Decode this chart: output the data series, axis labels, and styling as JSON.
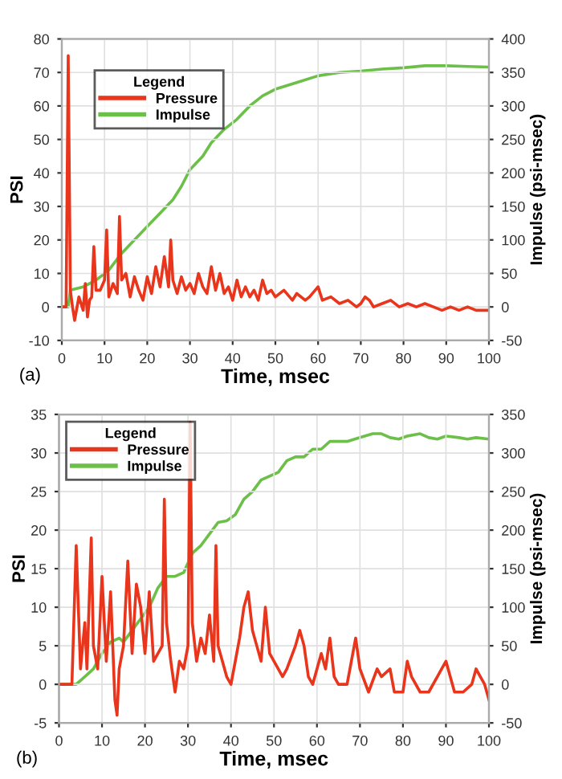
{
  "chart_data": [
    {
      "type": "line",
      "xlabel": "Time, msec",
      "ylabel": "PSI",
      "y2label": "Impulse (psi-msec)",
      "legend_title": "Legend",
      "legend": "top left",
      "grid": true,
      "annotations": [
        "(a)"
      ],
      "xlim": [
        0,
        100
      ],
      "xticks": [
        0,
        10,
        20,
        30,
        40,
        50,
        60,
        70,
        80,
        90,
        100
      ],
      "ylim": [
        -10,
        80
      ],
      "yticks": [
        -10,
        0,
        10,
        20,
        30,
        40,
        50,
        60,
        70,
        80
      ],
      "y2lim": [
        -50,
        400
      ],
      "y2ticks": [
        -50,
        0,
        50,
        100,
        150,
        200,
        250,
        300,
        350,
        400
      ],
      "series": [
        {
          "name": "Pressure",
          "color": "#e8351c",
          "x": [
            0,
            1,
            1.5,
            2,
            2.5,
            3,
            4,
            5,
            5.5,
            6,
            6.5,
            7,
            7.5,
            8,
            9,
            10,
            10.5,
            11,
            12,
            13,
            13.5,
            14,
            15,
            16,
            17,
            18,
            19,
            20,
            21,
            22,
            23,
            24,
            25,
            25.5,
            26,
            27,
            28,
            29,
            30,
            31,
            32,
            33,
            34,
            35,
            36,
            37,
            38,
            39,
            40,
            41,
            42,
            43,
            44,
            45,
            46,
            47,
            48,
            49,
            50,
            52,
            54,
            55,
            57,
            58,
            60,
            61,
            63,
            65,
            67,
            69,
            70,
            71,
            72,
            73,
            75,
            77,
            79,
            81,
            83,
            85,
            87,
            89,
            91,
            93,
            95,
            97,
            100
          ],
          "values": [
            0,
            0,
            75,
            5,
            0,
            -4,
            3,
            -1,
            7,
            -3,
            2,
            3,
            18,
            5,
            5,
            8,
            23,
            3,
            7,
            4,
            27,
            8,
            10,
            3,
            9,
            5,
            2,
            9,
            4,
            12,
            6,
            15,
            6,
            20,
            8,
            4,
            9,
            5,
            7,
            4,
            10,
            6,
            4,
            12,
            5,
            10,
            4,
            6,
            2,
            8,
            3,
            6,
            3,
            5,
            2,
            8,
            4,
            5,
            3,
            5,
            2,
            4,
            2,
            3,
            6,
            2,
            3,
            1,
            2,
            0,
            1,
            3,
            2,
            0,
            1,
            2,
            0,
            1,
            0,
            1,
            0,
            -1,
            0,
            -1,
            0,
            -1,
            -1
          ]
        },
        {
          "name": "Impulse",
          "color": "#6cc04a",
          "axis": "y2",
          "x": [
            0,
            1.5,
            2,
            5,
            8,
            11,
            14,
            17,
            20,
            23,
            26,
            28,
            30,
            33,
            35,
            38,
            41,
            44,
            47,
            50,
            55,
            60,
            65,
            70,
            75,
            80,
            85,
            90,
            95,
            100
          ],
          "values": [
            0,
            0,
            25,
            30,
            40,
            55,
            80,
            100,
            120,
            140,
            160,
            180,
            205,
            225,
            245,
            265,
            280,
            300,
            315,
            325,
            335,
            345,
            350,
            352,
            355,
            357,
            360,
            360,
            359,
            358
          ]
        }
      ]
    },
    {
      "type": "line",
      "xlabel": "Time, msec",
      "ylabel": "PSI",
      "y2label": "Impulse (psi-msec)",
      "legend_title": "Legend",
      "legend": "top left",
      "grid": true,
      "annotations": [
        "(b)"
      ],
      "xlim": [
        0,
        100
      ],
      "xticks": [
        0,
        10,
        20,
        30,
        40,
        50,
        60,
        70,
        80,
        90,
        100
      ],
      "ylim": [
        -5,
        35
      ],
      "yticks": [
        -5,
        0,
        5,
        10,
        15,
        20,
        25,
        30,
        35
      ],
      "y2lim": [
        -50,
        350
      ],
      "y2ticks": [
        -50,
        0,
        50,
        100,
        150,
        200,
        250,
        300,
        350
      ],
      "series": [
        {
          "name": "Pressure",
          "color": "#e8351c",
          "x": [
            0,
            3,
            4,
            5,
            6,
            6.5,
            7.5,
            8,
            9,
            10,
            11,
            12,
            13,
            13.5,
            14,
            15,
            16,
            17,
            18,
            19,
            20,
            21,
            22,
            24,
            24.5,
            25,
            26,
            27,
            28,
            29,
            30,
            30.5,
            31,
            32,
            33,
            34,
            35,
            36,
            36.5,
            37,
            38,
            39,
            40,
            41,
            42,
            43,
            44,
            45,
            46,
            47,
            48,
            49,
            50,
            51,
            52,
            53,
            55,
            56,
            57,
            58,
            59,
            60,
            61,
            62,
            63,
            64,
            65,
            67,
            68,
            69,
            70,
            72,
            74,
            75,
            77,
            78,
            80,
            81,
            82,
            84,
            86,
            88,
            89,
            90,
            91,
            92,
            94,
            96,
            97,
            98,
            99,
            100
          ],
          "values": [
            0,
            0,
            18,
            2,
            8,
            2,
            19,
            5,
            2,
            14,
            3,
            12,
            -2,
            -4,
            2,
            5,
            16,
            4,
            13,
            10,
            4,
            12,
            3,
            5,
            24,
            8,
            3,
            -1,
            3,
            2,
            5,
            34,
            8,
            3,
            6,
            4,
            9,
            3,
            18,
            5,
            3,
            1,
            0,
            3,
            6,
            10,
            12,
            7,
            5,
            3,
            10,
            4,
            3,
            2,
            1,
            2,
            5,
            7,
            5,
            1,
            0,
            2,
            4,
            2,
            6,
            1,
            0,
            0,
            3,
            6,
            2,
            -1,
            2,
            1,
            2,
            -1,
            -1,
            3,
            1,
            -1,
            -1,
            1,
            2,
            3,
            1,
            -1,
            -1,
            0,
            2,
            1,
            0,
            -2
          ]
        },
        {
          "name": "Impulse",
          "color": "#6cc04a",
          "axis": "y2",
          "x": [
            0,
            4,
            6,
            8,
            10,
            12,
            14,
            15,
            17,
            19,
            21,
            23,
            25,
            27,
            29,
            31,
            33,
            35,
            37,
            39,
            41,
            43,
            45,
            47,
            49,
            51,
            53,
            55,
            57,
            59,
            61,
            63,
            65,
            67,
            70,
            73,
            75,
            77,
            79,
            81,
            84,
            86,
            88,
            90,
            93,
            95,
            97,
            100
          ],
          "values": [
            0,
            0,
            10,
            20,
            40,
            55,
            60,
            55,
            70,
            85,
            100,
            125,
            140,
            140,
            145,
            170,
            180,
            195,
            210,
            212,
            220,
            240,
            250,
            265,
            270,
            275,
            290,
            295,
            295,
            305,
            305,
            315,
            315,
            315,
            320,
            325,
            325,
            320,
            318,
            322,
            325,
            320,
            318,
            322,
            320,
            318,
            320,
            318
          ]
        }
      ]
    }
  ]
}
